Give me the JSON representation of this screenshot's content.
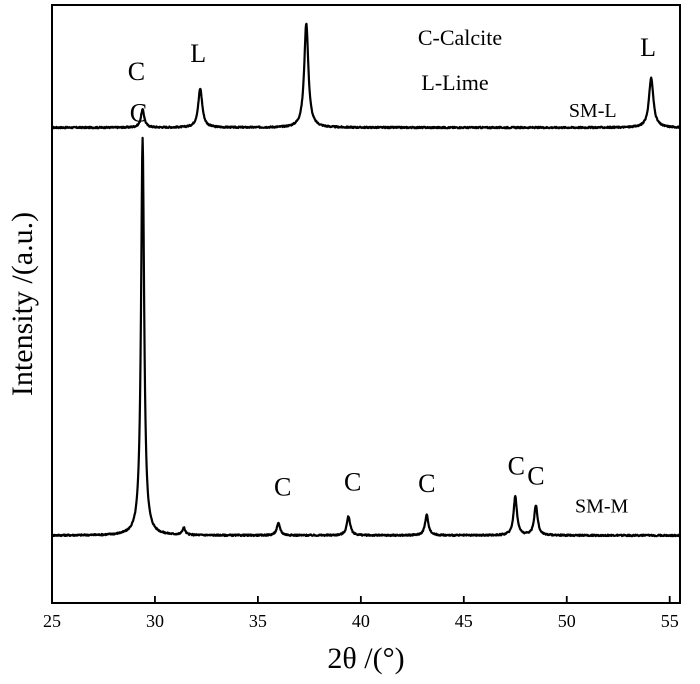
{
  "chart_data": {
    "type": "line",
    "title": "",
    "xlabel": "2θ /(°)",
    "ylabel": "Intensity /(a.u.)",
    "xlim": [
      25,
      55.5
    ],
    "ylim": [
      0,
      1
    ],
    "xticks": [
      25,
      30,
      35,
      40,
      45,
      50,
      55
    ],
    "xtick_labels": [
      "25",
      "30",
      "35",
      "40",
      "45",
      "50",
      "55"
    ],
    "yticks_shown": false,
    "grid": false,
    "legend": {
      "placement": "top-center",
      "entries": [
        "C-Calcite",
        "L-Lime"
      ]
    },
    "series": [
      {
        "name": "SM-L",
        "label_at": [
          50.1,
          0.813
        ],
        "baseline": 0.795,
        "noise": 0.0025,
        "peaks": [
          {
            "x": 29.4,
            "height": 0.03,
            "width": 0.1,
            "label": "C",
            "label_at": [
              29.1,
              0.875
            ]
          },
          {
            "x": 32.2,
            "height": 0.065,
            "width": 0.12,
            "label": "L",
            "label_at": [
              32.1,
              0.905
            ]
          },
          {
            "x": 37.35,
            "height": 0.175,
            "width": 0.12,
            "label": "L",
            "label_at": [
              37.35,
              1.03
            ]
          },
          {
            "x": 54.1,
            "height": 0.083,
            "width": 0.13,
            "label": "L",
            "label_at": [
              53.95,
              0.915
            ]
          }
        ]
      },
      {
        "name": "SM-M",
        "label_at": [
          50.4,
          0.151
        ],
        "baseline": 0.113,
        "noise": 0.0025,
        "peaks": [
          {
            "x": 29.4,
            "height": 0.665,
            "width": 0.09,
            "label": "C",
            "label_at": [
              29.2,
              0.805
            ]
          },
          {
            "x": 31.4,
            "height": 0.012,
            "width": 0.08
          },
          {
            "x": 36.0,
            "height": 0.02,
            "width": 0.1,
            "label": "C",
            "label_at": [
              36.2,
              0.18
            ]
          },
          {
            "x": 39.4,
            "height": 0.032,
            "width": 0.1,
            "label": "C",
            "label_at": [
              39.6,
              0.188
            ]
          },
          {
            "x": 43.2,
            "height": 0.034,
            "width": 0.1,
            "label": "C",
            "label_at": [
              43.2,
              0.186
            ]
          },
          {
            "x": 47.5,
            "height": 0.065,
            "width": 0.1,
            "label": "C",
            "label_at": [
              47.55,
              0.215
            ]
          },
          {
            "x": 48.5,
            "height": 0.05,
            "width": 0.1,
            "label": "C",
            "label_at": [
              48.5,
              0.198
            ]
          }
        ]
      }
    ]
  }
}
